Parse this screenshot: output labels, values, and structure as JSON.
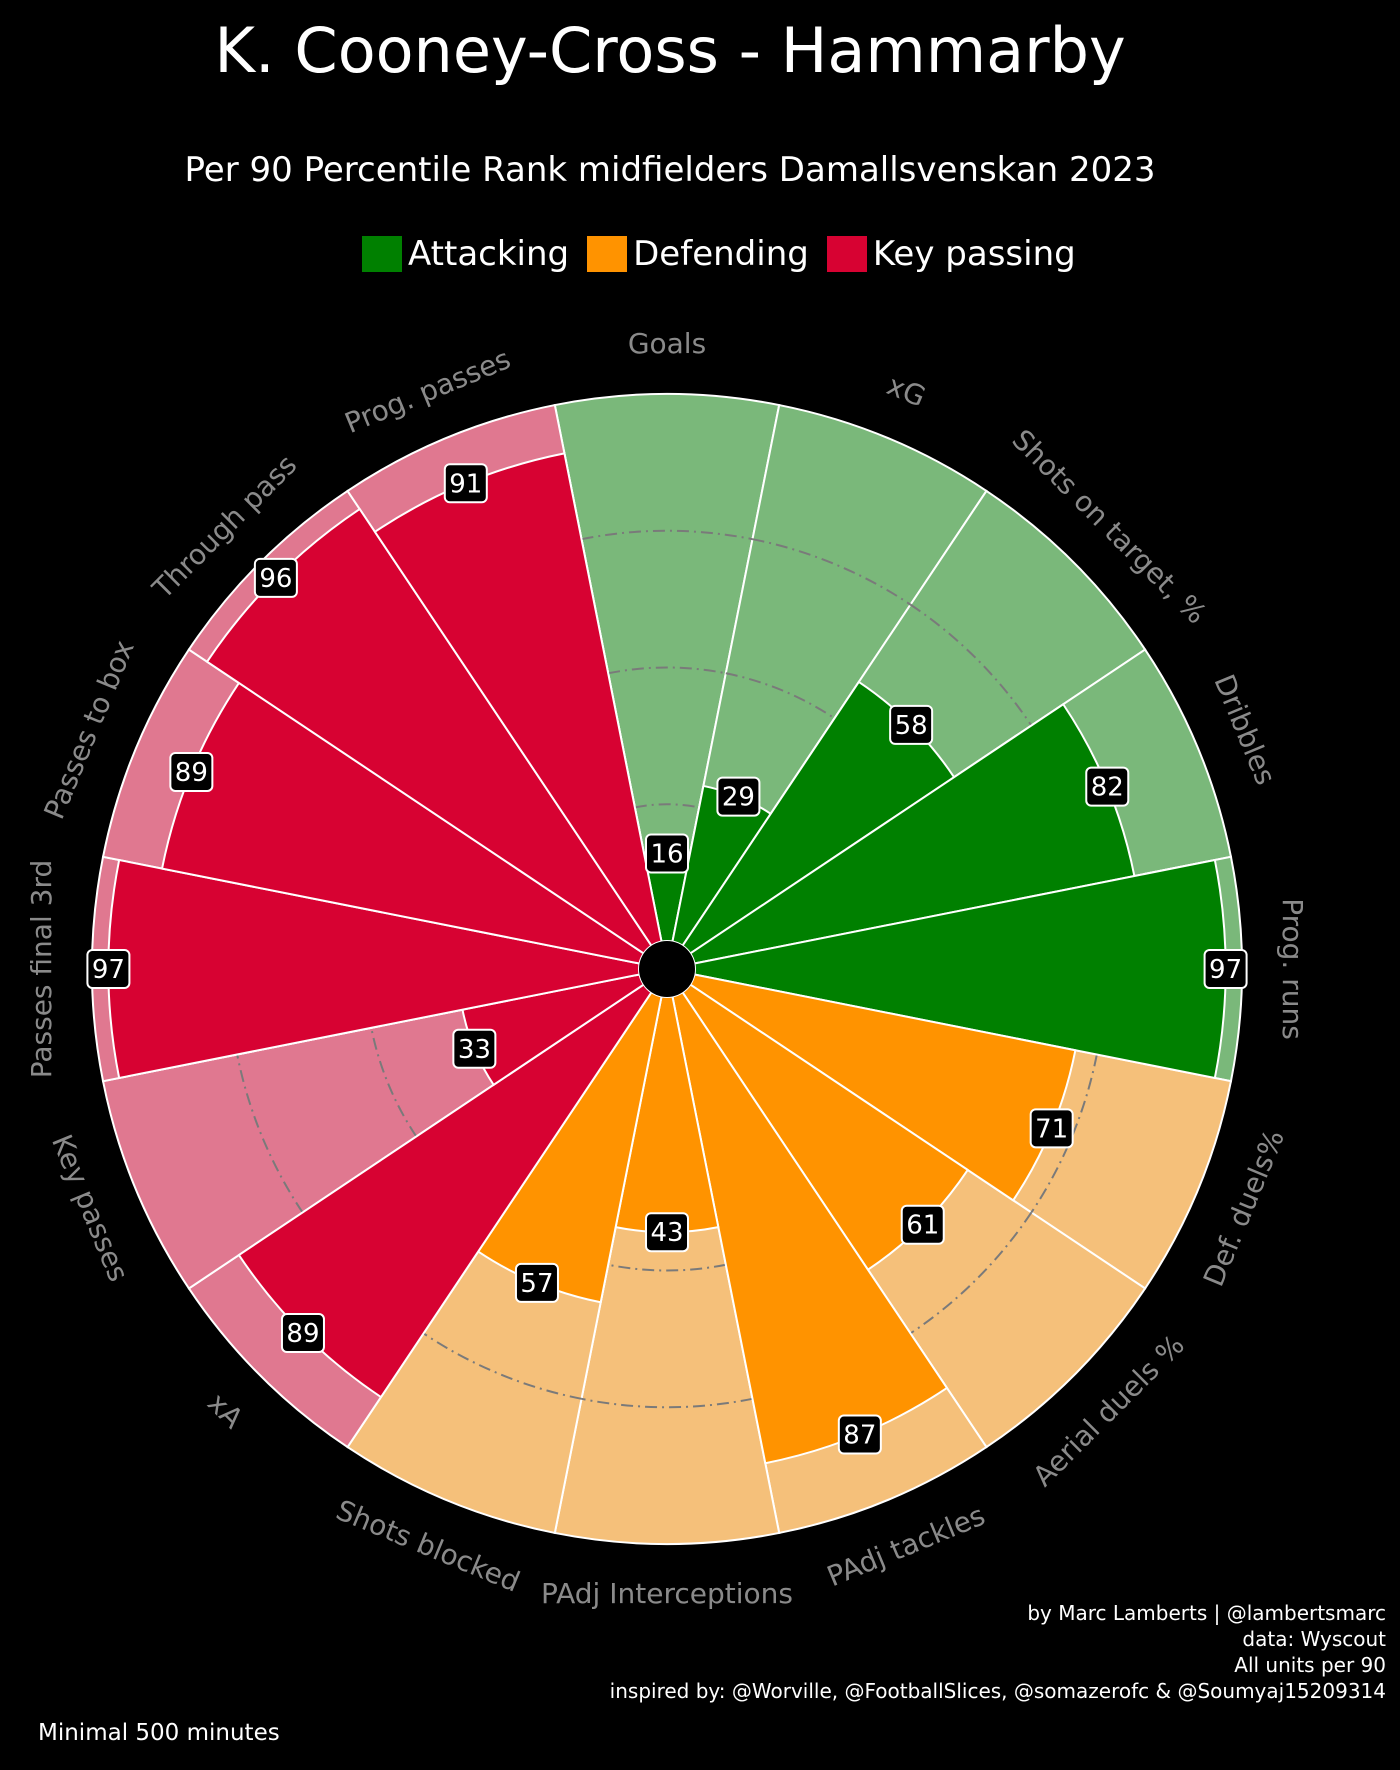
{
  "title": "K. Cooney-Cross - Hammarby",
  "subtitle": "Per 90 Percentile Rank midfielders Damallsvenskan 2023",
  "legend": [
    {
      "label": "Attacking",
      "color": "#008000"
    },
    {
      "label": "Defending",
      "color": "#ff9300"
    },
    {
      "label": "Key passing",
      "color": "#d70232"
    }
  ],
  "credits": {
    "line1": "by Marc Lamberts | @lambertsmarc",
    "line2": "data: Wyscout",
    "line3": "All units per 90",
    "line4": "inspired by: @Worville, @FootballSlices, @somazerofc & @Soumyaj15209314"
  },
  "footnote": "Minimal 500 minutes",
  "chart_data": {
    "type": "pizza",
    "range": [
      0,
      100
    ],
    "gridlines": [
      25,
      50,
      75
    ],
    "groups": {
      "Attacking": {
        "fill": "#008000",
        "background": "#7ab87a"
      },
      "Defending": {
        "fill": "#ff9300",
        "background": "#f5c07a"
      },
      "Key passing": {
        "fill": "#d70232",
        "background": "#e07890"
      }
    },
    "params": [
      {
        "label": "Goals",
        "value": 16,
        "group": "Attacking"
      },
      {
        "label": "xG",
        "value": 29,
        "group": "Attacking"
      },
      {
        "label": "Shots on target, %",
        "value": 58,
        "group": "Attacking"
      },
      {
        "label": "Dribbles",
        "value": 82,
        "group": "Attacking"
      },
      {
        "label": "Prog. runs",
        "value": 97,
        "group": "Attacking"
      },
      {
        "label": "Def. duels%",
        "value": 71,
        "group": "Defending"
      },
      {
        "label": "Aerial duels %",
        "value": 61,
        "group": "Defending"
      },
      {
        "label": "PAdj tackles",
        "value": 87,
        "group": "Defending"
      },
      {
        "label": "PAdj Interceptions",
        "value": 43,
        "group": "Defending"
      },
      {
        "label": "Shots blocked",
        "value": 57,
        "group": "Defending"
      },
      {
        "label": "xA",
        "value": 89,
        "group": "Key passing"
      },
      {
        "label": "Key passes",
        "value": 33,
        "group": "Key passing"
      },
      {
        "label": "Passes final 3rd",
        "value": 97,
        "group": "Key passing"
      },
      {
        "label": "Passes to box",
        "value": 89,
        "group": "Key passing"
      },
      {
        "label": "Through pass",
        "value": 96,
        "group": "Key passing"
      },
      {
        "label": "Prog. passes",
        "value": 91,
        "group": "Key passing"
      }
    ]
  }
}
